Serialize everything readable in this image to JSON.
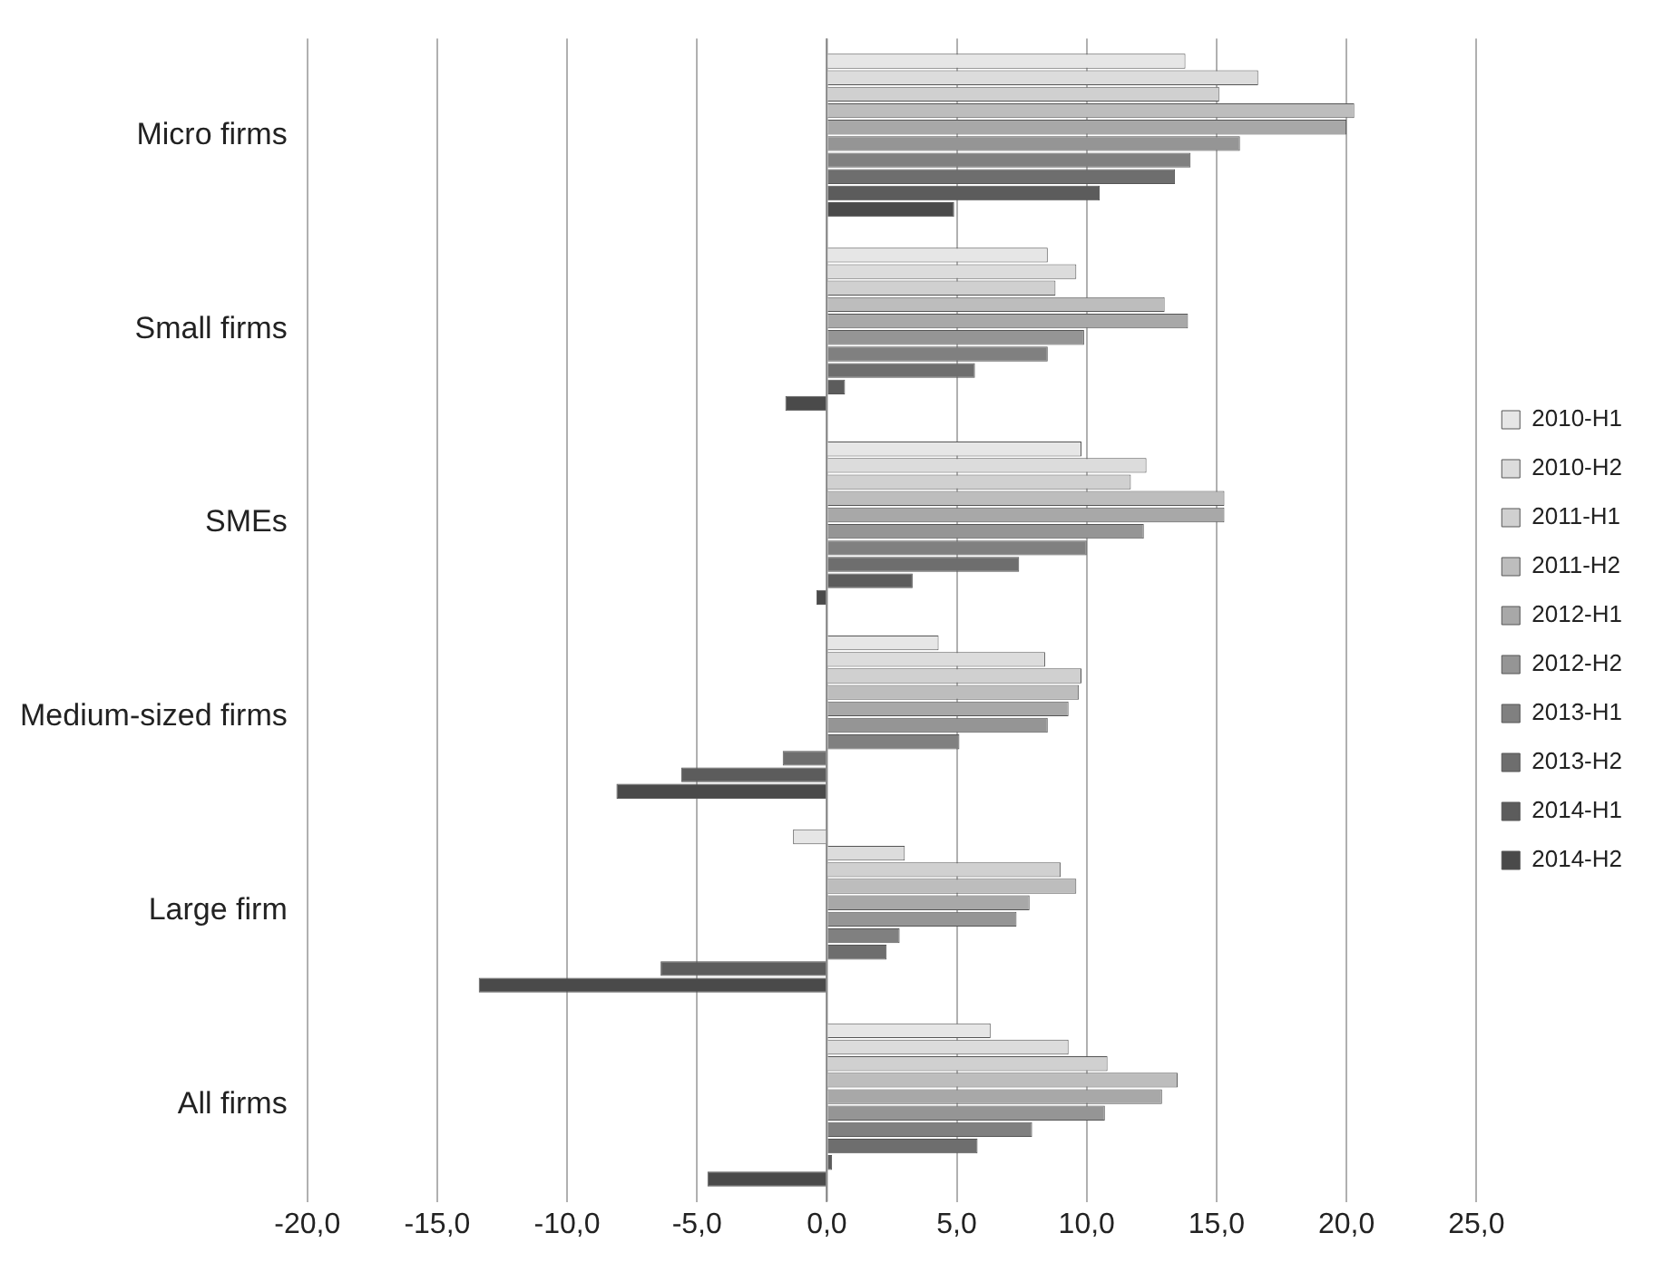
{
  "chart_data": {
    "type": "bar",
    "orientation": "horizontal",
    "categories": [
      "Micro firms",
      "Small firms",
      "SMEs",
      "Medium-sized firms",
      "Large firm",
      "All firms"
    ],
    "series": [
      {
        "name": "2010-H1",
        "color": "#e6e6e6",
        "values": [
          13.8,
          8.5,
          9.8,
          4.3,
          -1.3,
          6.3
        ]
      },
      {
        "name": "2010-H2",
        "color": "#dcdcdc",
        "values": [
          16.6,
          9.6,
          12.3,
          8.4,
          3.0,
          9.3
        ]
      },
      {
        "name": "2011-H1",
        "color": "#d0d0d0",
        "values": [
          15.1,
          8.8,
          11.7,
          9.8,
          9.0,
          10.8
        ]
      },
      {
        "name": "2011-H2",
        "color": "#bdbdbd",
        "values": [
          20.3,
          13.0,
          15.3,
          9.7,
          9.6,
          13.5
        ]
      },
      {
        "name": "2012-H1",
        "color": "#a8a8a8",
        "values": [
          20.0,
          13.9,
          15.3,
          9.3,
          7.8,
          12.9
        ]
      },
      {
        "name": "2012-H2",
        "color": "#959595",
        "values": [
          15.9,
          9.9,
          12.2,
          8.5,
          7.3,
          10.7
        ]
      },
      {
        "name": "2013-H1",
        "color": "#808080",
        "values": [
          14.0,
          8.5,
          10.0,
          5.1,
          2.8,
          7.9
        ]
      },
      {
        "name": "2013-H2",
        "color": "#6e6e6e",
        "values": [
          13.4,
          5.7,
          7.4,
          -1.7,
          2.3,
          5.8
        ]
      },
      {
        "name": "2014-H1",
        "color": "#5c5c5c",
        "values": [
          10.5,
          0.7,
          3.3,
          -5.6,
          -6.4,
          0.2
        ]
      },
      {
        "name": "2014-H2",
        "color": "#4a4a4a",
        "values": [
          4.9,
          -1.6,
          -0.4,
          -8.1,
          -13.4,
          -4.6
        ]
      }
    ],
    "xlim": [
      -20,
      25
    ],
    "xticks": [
      {
        "value": -20,
        "label": "-20,0"
      },
      {
        "value": -15,
        "label": "-15,0"
      },
      {
        "value": -10,
        "label": "-10,0"
      },
      {
        "value": -5,
        "label": "-5,0"
      },
      {
        "value": 0,
        "label": "0,0"
      },
      {
        "value": 5,
        "label": "5,0"
      },
      {
        "value": 10,
        "label": "10,0"
      },
      {
        "value": 15,
        "label": "15,0"
      },
      {
        "value": 20,
        "label": "20,0"
      },
      {
        "value": 25,
        "label": "25,0"
      }
    ],
    "grid": "x",
    "legend": "right"
  }
}
